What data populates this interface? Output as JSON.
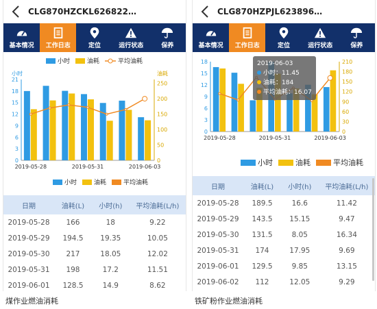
{
  "tabs": [
    "基本情况",
    "工作日志",
    "定位",
    "运行状态",
    "保养"
  ],
  "legend": {
    "hours": "小时",
    "fuel": "油耗",
    "avg": "平均油耗"
  },
  "left": {
    "title": "CLG870HZCKL626822…",
    "axis_left_label": "小时",
    "axis_right_label": "油耗",
    "caption": "煤作业燃油消耗",
    "table_headers": [
      "日期",
      "油耗(L)",
      "小时(h)",
      "平均油耗(L/h)"
    ],
    "rows": [
      [
        "2019-05-28",
        "166",
        "18",
        "9.22"
      ],
      [
        "2019-05-29",
        "194.5",
        "19.35",
        "10.05"
      ],
      [
        "2019-05-30",
        "217",
        "18.05",
        "12.02"
      ],
      [
        "2019-05-31",
        "198",
        "17.2",
        "11.51"
      ],
      [
        "2019-06-01",
        "128.5",
        "14.9",
        "8.62"
      ]
    ]
  },
  "right": {
    "title": "CLG870HZPJL623896…",
    "caption": "铁矿粉作业燃油消耗",
    "tooltip": {
      "date": "2019-06-03",
      "hours": "小时：11.45",
      "fuel": "油耗：184",
      "avg": "平均油耗：16.07"
    },
    "table_headers": [
      "日期",
      "油耗(L)",
      "小时(h)",
      "平均油耗(L/h)"
    ],
    "rows": [
      [
        "2019-05-28",
        "189.5",
        "16.6",
        "11.42"
      ],
      [
        "2019-05-29",
        "143.5",
        "15.15",
        "9.47"
      ],
      [
        "2019-05-30",
        "131.5",
        "8.05",
        "16.34"
      ],
      [
        "2019-05-31",
        "174",
        "17.95",
        "9.69"
      ],
      [
        "2019-06-01",
        "129.5",
        "9.85",
        "13.15"
      ],
      [
        "2019-06-02",
        "112",
        "12.05",
        "9.29"
      ]
    ]
  },
  "colors": {
    "hours": "#2f9be3",
    "fuel": "#f2c10f",
    "avg": "#f08a22",
    "nav": "#12306a",
    "active": "#f08a22"
  },
  "chart_data": [
    {
      "type": "bar",
      "categories": [
        "2019-05-28",
        "2019-05-29",
        "2019-05-30",
        "2019-05-31",
        "2019-06-01",
        "2019-06-02",
        "2019-06-03"
      ],
      "x_tick_labels": [
        "2019-05-28",
        "2019-05-31",
        "2019-06-03"
      ],
      "series": [
        {
          "name": "小时",
          "axis": "left",
          "values": [
            18,
            19.35,
            18.05,
            17.2,
            14.9,
            15.5,
            11.2
          ]
        },
        {
          "name": "油耗",
          "axis": "right",
          "values": [
            166,
            194.5,
            217,
            198,
            128.5,
            164,
            130
          ]
        },
        {
          "name": "平均油耗",
          "axis": "right",
          "type": "line",
          "values": [
            150,
            170,
            180,
            172,
            150,
            165,
            200
          ]
        }
      ],
      "left_ticks": [
        0,
        3,
        6,
        9,
        12,
        15,
        18,
        21
      ],
      "right_ticks": [
        0,
        50,
        100,
        150,
        200,
        250
      ],
      "ylim_left": [
        0,
        21
      ],
      "ylim_right": [
        0,
        262.5
      ]
    },
    {
      "type": "bar",
      "categories": [
        "2019-05-28",
        "2019-05-29",
        "2019-05-30",
        "2019-05-31",
        "2019-06-01",
        "2019-06-02",
        "2019-06-03"
      ],
      "x_tick_labels": [
        "2019-05-28",
        "2019-05-31",
        "2019-06-03"
      ],
      "series": [
        {
          "name": "小时",
          "axis": "left",
          "values": [
            16.6,
            15.15,
            8.05,
            17.95,
            9.85,
            12.05,
            11.45
          ]
        },
        {
          "name": "油耗",
          "axis": "right",
          "values": [
            189.5,
            143.5,
            131.5,
            174,
            129.5,
            112,
            184
          ]
        },
        {
          "name": "平均油耗",
          "axis": "right",
          "type": "line",
          "values": [
            114,
            95,
            163,
            97,
            131,
            93,
            161
          ]
        }
      ],
      "left_ticks": [
        0,
        3,
        6,
        9,
        12,
        15,
        18
      ],
      "right_ticks": [
        0,
        30,
        60,
        90,
        120,
        150,
        180,
        210
      ],
      "ylim_left": [
        0,
        18
      ],
      "ylim_right": [
        0,
        210
      ]
    }
  ]
}
